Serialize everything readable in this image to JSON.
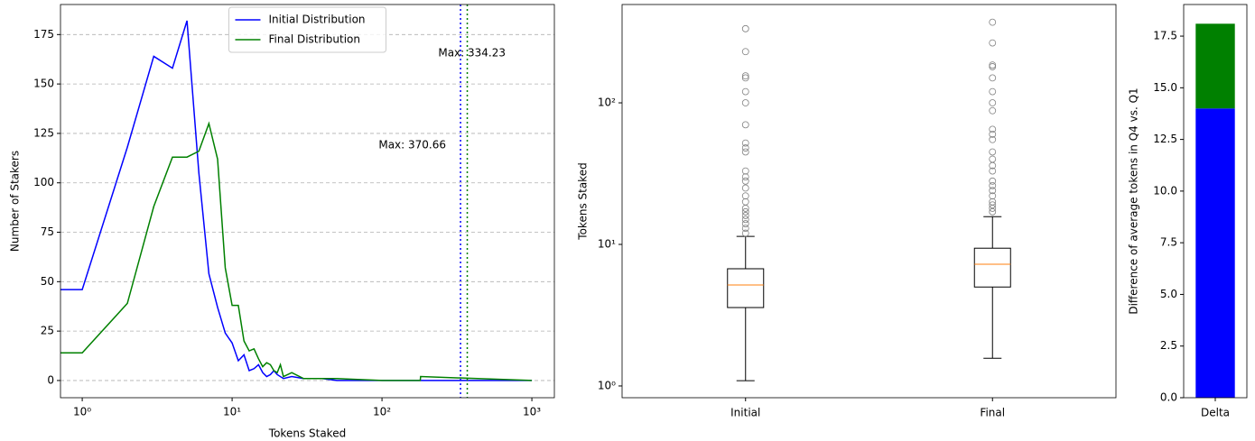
{
  "chart_data": [
    {
      "type": "line",
      "xlabel": "Tokens Staked",
      "ylabel": "Number of Stakers",
      "xscale": "log",
      "xlim": [
        0.716,
        1413
      ],
      "ylim": [
        -8.7,
        190.2
      ],
      "xticks": [
        {
          "value": 1,
          "label": "10⁰"
        },
        {
          "value": 10,
          "label": "10¹"
        },
        {
          "value": 100,
          "label": "10²"
        },
        {
          "value": 1000,
          "label": "10³"
        }
      ],
      "yticks": [
        0,
        25,
        50,
        75,
        100,
        125,
        150,
        175
      ],
      "grid": true,
      "legend": "upper center",
      "series": [
        {
          "name": "Initial Distribution",
          "color": "#0000ff",
          "x": [
            0.7,
            1,
            2,
            3,
            4,
            5,
            6,
            7,
            8,
            9,
            10,
            11,
            12,
            13,
            14,
            15,
            16,
            17,
            18,
            19,
            20,
            22,
            25,
            30,
            40,
            50,
            100,
            1000
          ],
          "values": [
            46,
            46,
            118,
            164,
            158,
            182,
            105,
            54,
            37,
            24,
            19,
            10,
            13,
            5,
            6,
            8,
            4,
            2,
            3,
            5,
            3,
            1,
            2,
            1,
            1,
            0,
            0,
            0
          ]
        },
        {
          "name": "Final Distribution",
          "color": "#008000",
          "x": [
            0.7,
            1,
            2,
            3,
            4,
            5,
            6,
            7,
            8,
            9,
            10,
            11,
            12,
            13,
            14,
            15,
            16,
            17,
            18,
            19,
            20,
            21,
            22,
            25,
            30,
            50,
            100,
            180,
            181,
            1000
          ],
          "values": [
            14,
            14,
            39,
            88,
            113,
            113,
            116,
            130,
            112,
            57,
            38,
            38,
            20,
            15,
            16,
            11,
            7,
            9,
            8,
            5,
            4,
            8,
            2,
            4,
            1,
            1,
            0,
            0,
            2,
            0
          ]
        }
      ],
      "vlines": [
        {
          "x": 334.23,
          "color": "#0000ff",
          "label": "Max: 334.23"
        },
        {
          "x": 370.66,
          "color": "#008000",
          "label": "Max: 370.66"
        }
      ]
    },
    {
      "type": "box",
      "ylabel": "Tokens Staked",
      "yscale": "log",
      "ylim": [
        0.826,
        495
      ],
      "yticks": [
        {
          "value": 1,
          "label": "10⁰"
        },
        {
          "value": 10,
          "label": "10¹"
        },
        {
          "value": 100,
          "label": "10²"
        }
      ],
      "categories": [
        "Initial",
        "Final"
      ],
      "box_color": "#000000",
      "median_color": "#ff7f0e",
      "flier_color": "#808080",
      "boxes": [
        {
          "whislo": 1.09,
          "q1": 3.58,
          "med": 5.17,
          "q3": 6.73,
          "whishi": 11.4,
          "fliers": [
            12,
            13,
            14,
            15,
            16,
            17,
            18,
            20,
            22,
            25,
            28,
            30,
            33,
            45,
            48,
            52,
            70,
            100,
            120,
            150,
            155,
            230,
            334
          ]
        },
        {
          "whislo": 1.57,
          "q1": 5.0,
          "med": 7.24,
          "q3": 9.4,
          "whishi": 15.7,
          "fliers": [
            17,
            18,
            19,
            20,
            22,
            24,
            26,
            28,
            33,
            36,
            40,
            45,
            55,
            60,
            65,
            88,
            100,
            120,
            150,
            180,
            185,
            265,
            371
          ]
        }
      ]
    },
    {
      "type": "stacked_bar",
      "ylabel": "Difference of average tokens in Q4 vs. Q1",
      "ylim": [
        0,
        19.03
      ],
      "yticks": [
        {
          "value": 0,
          "label": "0.0"
        },
        {
          "value": 2.5,
          "label": "2.5"
        },
        {
          "value": 5,
          "label": "5.0"
        },
        {
          "value": 7.5,
          "label": "7.5"
        },
        {
          "value": 10,
          "label": "10.0"
        },
        {
          "value": 12.5,
          "label": "12.5"
        },
        {
          "value": 15,
          "label": "15.0"
        },
        {
          "value": 17.5,
          "label": "17.5"
        }
      ],
      "categories": [
        "Delta"
      ],
      "series": [
        {
          "color": "#0000ff",
          "values": [
            14.0
          ]
        },
        {
          "color": "#008000",
          "values": [
            4.1
          ]
        }
      ]
    }
  ]
}
